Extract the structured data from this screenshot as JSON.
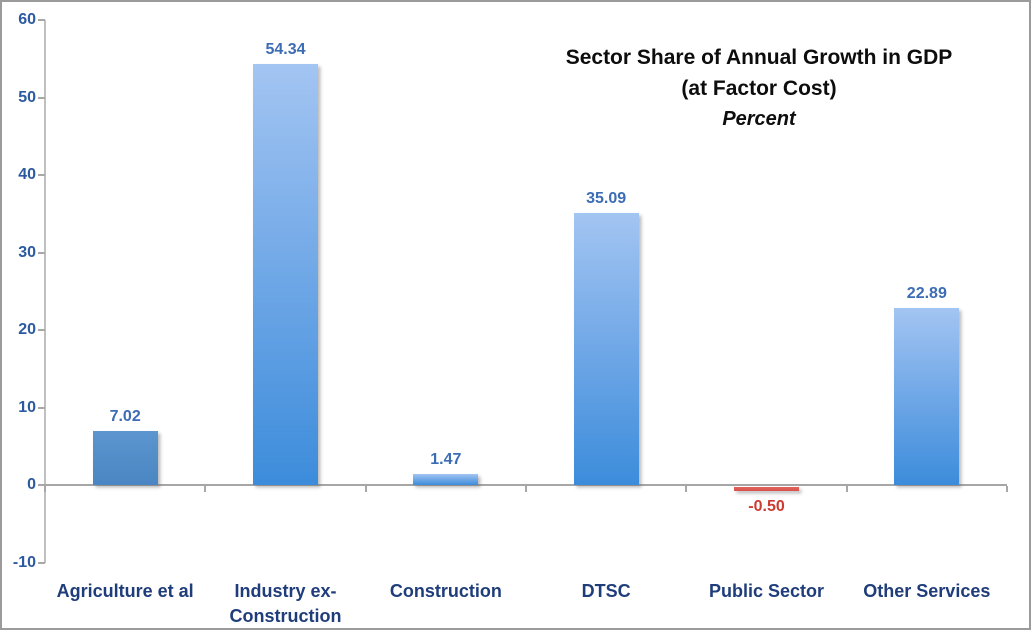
{
  "chart_data": {
    "type": "bar",
    "title": "Sector Share of Annual Growth in GDP",
    "subtitle": "(at Factor Cost)",
    "unit_label": "Percent",
    "categories": [
      "Agriculture et al",
      "Industry ex-Construction",
      "Construction",
      "DTSC",
      "Public Sector",
      "Other Services"
    ],
    "values": [
      7.02,
      54.34,
      1.47,
      35.09,
      -0.5,
      22.89
    ],
    "value_labels": [
      "7.02",
      "54.34",
      "1.47",
      "35.09",
      "-0.50",
      "22.89"
    ],
    "bar_styles": [
      "steel",
      "blue",
      "blue",
      "blue",
      "red",
      "blue"
    ],
    "ylim": [
      -10,
      60
    ],
    "ytick_step": 10,
    "yticks": [
      "60",
      "50",
      "40",
      "30",
      "20",
      "10",
      "0",
      "-10"
    ],
    "grid": false,
    "legend": false,
    "colors": {
      "bar_gradient_top": "#a3c5f2",
      "bar_gradient_bottom": "#3c8cdb",
      "bar_first_solid": "#4a86c3",
      "bar_negative": "#d8504a",
      "value_label_positive": "#3b6cb4",
      "value_label_negative": "#ce3a30",
      "category_label": "#1f3d7a",
      "ytick_label": "#2c5aa0",
      "axis_line": "#a6a6a6",
      "frame_border": "#9b9b9b"
    }
  }
}
